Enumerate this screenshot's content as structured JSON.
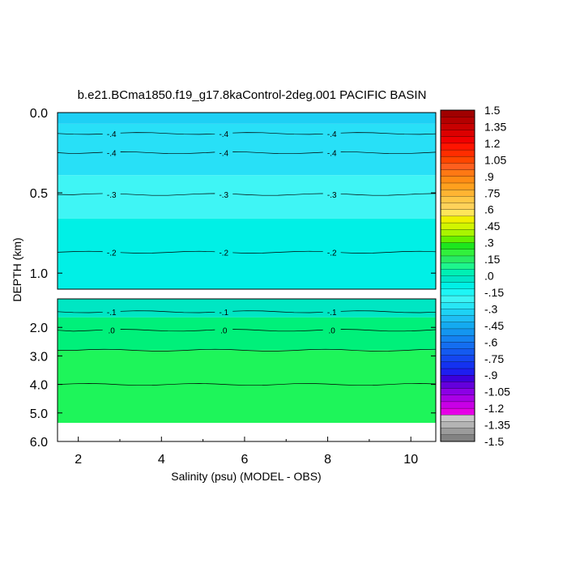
{
  "chart_data": {
    "type": "heatmap",
    "title": "b.e21.BCma1850.f19_g17.8kaControl-2deg.001 PACIFIC BASIN",
    "xlabel": "Salinity (psu) (MODEL - OBS)",
    "ylabel": "DEPTH (km)",
    "xlim": [
      1.5,
      10.6
    ],
    "x_ticks": [
      "2",
      "4",
      "6",
      "8",
      "10"
    ],
    "upper_panel": {
      "ylim": [
        0.0,
        1.1
      ],
      "y_ticks": [
        "0.0",
        "0.5",
        "1.0"
      ],
      "bands": [
        {
          "from": 0.0,
          "to": 0.07,
          "color": "#1ed0f5"
        },
        {
          "from": 0.07,
          "to": 0.39,
          "color": "#28e0f7"
        },
        {
          "from": 0.39,
          "to": 0.66,
          "color": "#3ff5f5"
        },
        {
          "from": 0.66,
          "to": 1.1,
          "color": "#00f0e6"
        }
      ],
      "contours": [
        {
          "depth": 0.13,
          "label": "-.4"
        },
        {
          "depth": 0.25,
          "label": "-.4"
        },
        {
          "depth": 0.51,
          "label": "-.3"
        },
        {
          "depth": 0.87,
          "label": "-.2"
        }
      ]
    },
    "lower_panel": {
      "ylim": [
        1.0,
        6.0
      ],
      "y_ticks": [
        "2.0",
        "3.0",
        "4.0",
        "5.0",
        "6.0"
      ],
      "no_data_below": 5.35,
      "bands": [
        {
          "from": 1.0,
          "to": 1.65,
          "color": "#00e6c3"
        },
        {
          "from": 1.65,
          "to": 2.8,
          "color": "#00f07a"
        },
        {
          "from": 2.8,
          "to": 5.35,
          "color": "#1ef55a"
        }
      ],
      "contours": [
        {
          "depth": 1.45,
          "label": "-.1"
        },
        {
          "depth": 2.1,
          "label": ".0"
        },
        {
          "depth": 2.8,
          "label": ""
        },
        {
          "depth": 4.0,
          "label": ""
        }
      ]
    },
    "label_x_positions": [
      2.8,
      5.5,
      8.1
    ],
    "colorbar": {
      "min": -1.5,
      "max": 1.5,
      "step": 0.075,
      "tick_labels": [
        "1.5",
        "1.35",
        "1.2",
        "1.05",
        ".9",
        ".75",
        ".6",
        ".45",
        ".3",
        ".15",
        ".0",
        "-.15",
        "-.3",
        "-.45",
        "-.6",
        "-.75",
        "-.9",
        "-1.05",
        "-1.2",
        "-1.35",
        "-1.5"
      ],
      "colors_top_to_bottom": [
        "#a00000",
        "#b40000",
        "#c80000",
        "#dc0000",
        "#f00000",
        "#ff1400",
        "#ff2d00",
        "#ff4600",
        "#ff5f1e",
        "#ff7814",
        "#ff8c14",
        "#ffa01e",
        "#ffb432",
        "#ffc846",
        "#ffd25a",
        "#ffe65a",
        "#f0f000",
        "#d2f500",
        "#aaf500",
        "#64f000",
        "#1ee61e",
        "#32f03c",
        "#28eb64",
        "#1ef58c",
        "#00f0b4",
        "#00e6c8",
        "#00f0e6",
        "#1ef5f5",
        "#3cf5f5",
        "#28e6f5",
        "#1ed2f5",
        "#1ebef5",
        "#14aaf0",
        "#1496f0",
        "#1482f0",
        "#146ef0",
        "#145af0",
        "#1446f0",
        "#1432f0",
        "#1e1ef0",
        "#3c00dc",
        "#6400dc",
        "#8c00e6",
        "#aa00e6",
        "#c800e6",
        "#e600e6",
        "#c8c8c8",
        "#b4b4b4",
        "#9b9b9b",
        "#828282"
      ]
    }
  }
}
